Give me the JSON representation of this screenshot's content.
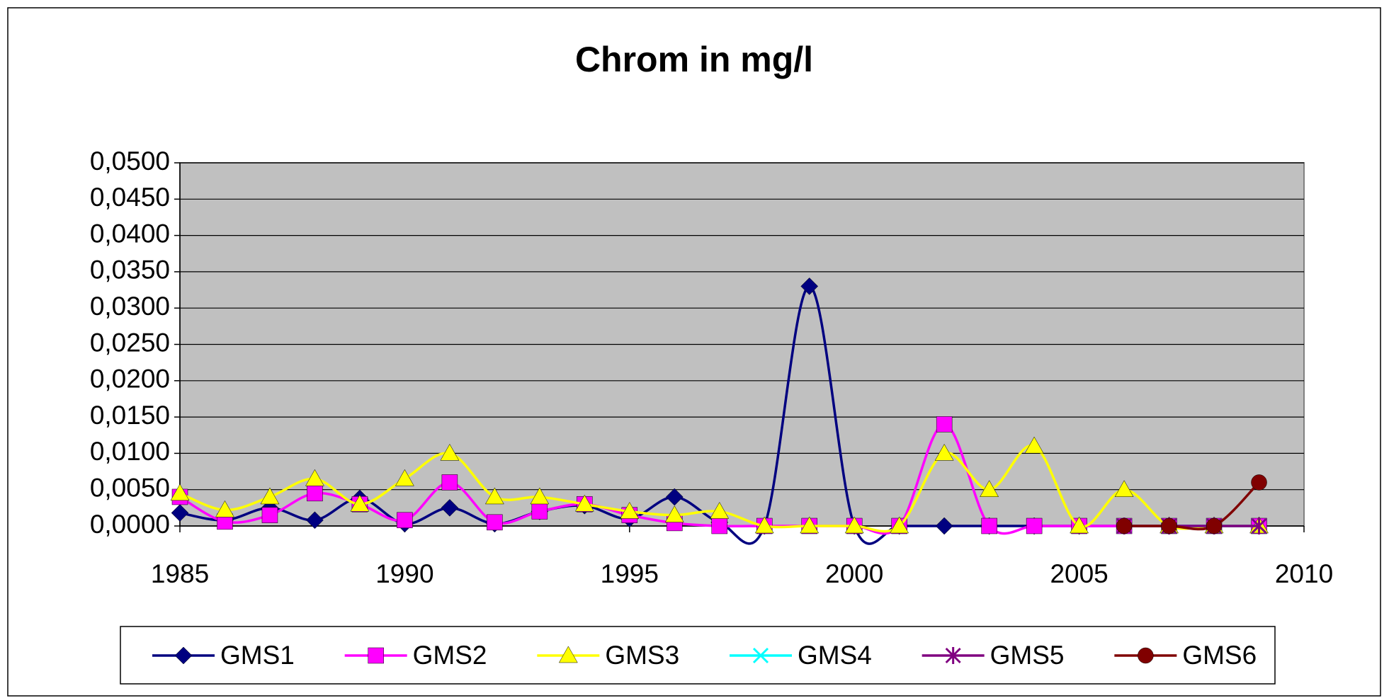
{
  "chart_data": {
    "type": "line",
    "title": "Chrom in mg/l",
    "smooth": true,
    "x": [
      1985,
      1986,
      1987,
      1988,
      1989,
      1990,
      1991,
      1992,
      1993,
      1994,
      1995,
      1996,
      1997,
      1998,
      1999,
      2000,
      2001,
      2002,
      2003,
      2004,
      2005,
      2006,
      2007,
      2008,
      2009
    ],
    "xlim": [
      1985,
      2010
    ],
    "xticks": [
      1985,
      1990,
      1995,
      2000,
      2005,
      2010
    ],
    "ylim": [
      0,
      0.05
    ],
    "yticks": [
      {
        "value": 0,
        "label": "0,0000"
      },
      {
        "value": 0.005,
        "label": "0,0050"
      },
      {
        "value": 0.01,
        "label": "0,0100"
      },
      {
        "value": 0.015,
        "label": "0,0150"
      },
      {
        "value": 0.02,
        "label": "0,0200"
      },
      {
        "value": 0.025,
        "label": "0,0250"
      },
      {
        "value": 0.03,
        "label": "0,0300"
      },
      {
        "value": 0.035,
        "label": "0,0350"
      },
      {
        "value": 0.04,
        "label": "0,0400"
      },
      {
        "value": 0.045,
        "label": "0,0450"
      },
      {
        "value": 0.05,
        "label": "0,0500"
      }
    ],
    "grid": true,
    "legend": "bottom",
    "series": [
      {
        "name": "GMS1",
        "color": "#000080",
        "marker": "diamond",
        "values": [
          0.0018,
          0.0008,
          0.0025,
          0.0008,
          0.0038,
          0.0003,
          0.0025,
          0.0003,
          0.002,
          0.0028,
          0.001,
          0.004,
          0.0005,
          0,
          0.033,
          0,
          0,
          0,
          0,
          0,
          0,
          0,
          0,
          0,
          0
        ]
      },
      {
        "name": "GMS2",
        "color": "#ff00ff",
        "marker": "square",
        "values": [
          0.004,
          0.0006,
          0.0015,
          0.0045,
          0.003,
          0.0008,
          0.006,
          0.0005,
          0.002,
          0.003,
          0.0015,
          0.0004,
          0,
          0,
          0,
          0,
          0,
          0.014,
          0,
          0,
          0,
          0,
          0,
          0,
          0
        ]
      },
      {
        "name": "GMS3",
        "color": "#ffff00",
        "marker": "triangle",
        "values": [
          0.0045,
          0.0022,
          0.004,
          0.0065,
          0.003,
          0.0065,
          0.01,
          0.004,
          0.004,
          0.003,
          0.002,
          0.0015,
          0.002,
          0,
          0,
          0,
          0,
          0.01,
          0.005,
          0.011,
          0,
          0.005,
          0,
          0,
          0
        ]
      },
      {
        "name": "GMS4",
        "color": "#00ffff",
        "marker": "x",
        "values": [
          null,
          null,
          null,
          null,
          null,
          null,
          null,
          null,
          null,
          null,
          null,
          null,
          null,
          null,
          null,
          null,
          null,
          null,
          null,
          null,
          null,
          0,
          0,
          0,
          0
        ]
      },
      {
        "name": "GMS5",
        "color": "#800080",
        "marker": "asterisk",
        "values": [
          null,
          null,
          null,
          null,
          null,
          null,
          null,
          null,
          null,
          null,
          null,
          null,
          null,
          null,
          null,
          null,
          null,
          null,
          null,
          null,
          null,
          0,
          0,
          0,
          0
        ]
      },
      {
        "name": "GMS6",
        "color": "#800000",
        "marker": "circle",
        "values": [
          null,
          null,
          null,
          null,
          null,
          null,
          null,
          null,
          null,
          null,
          null,
          null,
          null,
          null,
          null,
          null,
          null,
          null,
          null,
          null,
          null,
          0,
          0,
          0,
          0.006
        ]
      }
    ]
  }
}
